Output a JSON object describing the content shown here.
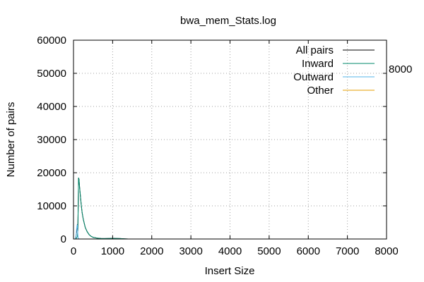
{
  "chart_data": {
    "type": "line",
    "title": "bwa_mem_Stats.log",
    "xlabel": "Insert Size",
    "ylabel": "Number of pairs",
    "x_ticks": [
      "0",
      "1000",
      "2000",
      "3000",
      "4000",
      "5000",
      "6000",
      "7000",
      "8000"
    ],
    "y_ticks": [
      "0",
      "10000",
      "20000",
      "30000",
      "40000",
      "50000",
      "60000"
    ],
    "xlim": [
      0,
      8000
    ],
    "ylim": [
      0,
      60000
    ],
    "grid": true,
    "legend_position": "top-right",
    "annotation": "8000",
    "series": [
      {
        "name": "All pairs",
        "color": "#000000",
        "x": [
          0,
          40,
          60,
          80,
          100,
          110,
          120,
          130,
          140,
          150,
          160,
          180,
          200,
          220,
          250,
          280,
          300,
          350,
          400,
          450,
          500,
          600,
          700,
          800,
          900,
          1000,
          1100,
          1200,
          1300,
          1400
        ],
        "y": [
          0,
          0,
          600,
          2000,
          4500,
          2500,
          9000,
          18500,
          18000,
          16500,
          15000,
          12500,
          10000,
          8000,
          6000,
          4500,
          3500,
          2200,
          1300,
          800,
          500,
          250,
          150,
          120,
          150,
          200,
          180,
          120,
          60,
          0
        ]
      },
      {
        "name": "Inward",
        "color": "#00896b",
        "x": [
          0,
          60,
          80,
          100,
          110,
          120,
          130,
          140,
          150,
          160,
          180,
          200,
          220,
          250,
          280,
          300,
          350,
          400,
          450,
          500,
          600,
          700,
          800,
          900,
          1000,
          1100,
          1200,
          1300,
          1400
        ],
        "y": [
          0,
          0,
          300,
          800,
          2500,
          9000,
          18500,
          18000,
          16500,
          15000,
          12500,
          10000,
          8000,
          6000,
          4500,
          3500,
          2200,
          1300,
          800,
          500,
          250,
          150,
          120,
          150,
          200,
          180,
          120,
          60,
          0
        ]
      },
      {
        "name": "Outward",
        "color": "#56b4e9",
        "x": [
          0,
          40,
          60,
          70,
          80,
          90,
          100,
          110,
          120,
          140,
          160,
          200
        ],
        "y": [
          0,
          0,
          500,
          1500,
          3000,
          4000,
          4200,
          1500,
          300,
          50,
          0,
          0
        ]
      },
      {
        "name": "Other",
        "color": "#e69f00",
        "x": [
          0,
          1400
        ],
        "y": [
          0,
          0
        ]
      }
    ]
  }
}
